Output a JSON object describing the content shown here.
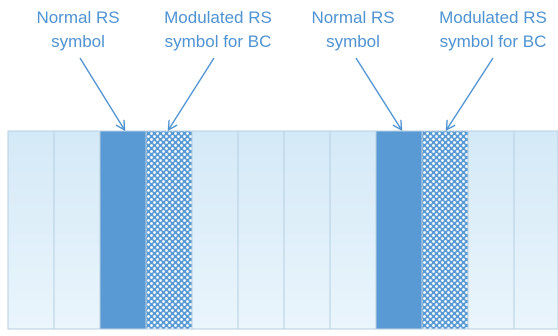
{
  "labels": [
    {
      "line1": "Normal RS",
      "line2": "symbol"
    },
    {
      "line1": "Modulated RS",
      "line2": "symbol for BC"
    },
    {
      "line1": "Normal RS",
      "line2": "symbol"
    },
    {
      "line1": "Modulated RS",
      "line2": "symbol for BC"
    }
  ],
  "symbols": [
    "plain",
    "plain",
    "normal-rs",
    "modulated-rs",
    "plain",
    "plain",
    "plain",
    "plain",
    "normal-rs",
    "modulated-rs",
    "plain",
    "plain"
  ],
  "colors": {
    "label_text": "#4f93d2",
    "arrow": "#4f93d2",
    "normal_rs_fill": "#5a9ad4",
    "modulated_rs_fill": "#5a9ad4",
    "modulated_rs_dots": "#ffffff",
    "plain_light": "#e6f3fb",
    "plain_dark": "#cfe5f4",
    "cell_border": "#b6cfe0"
  }
}
